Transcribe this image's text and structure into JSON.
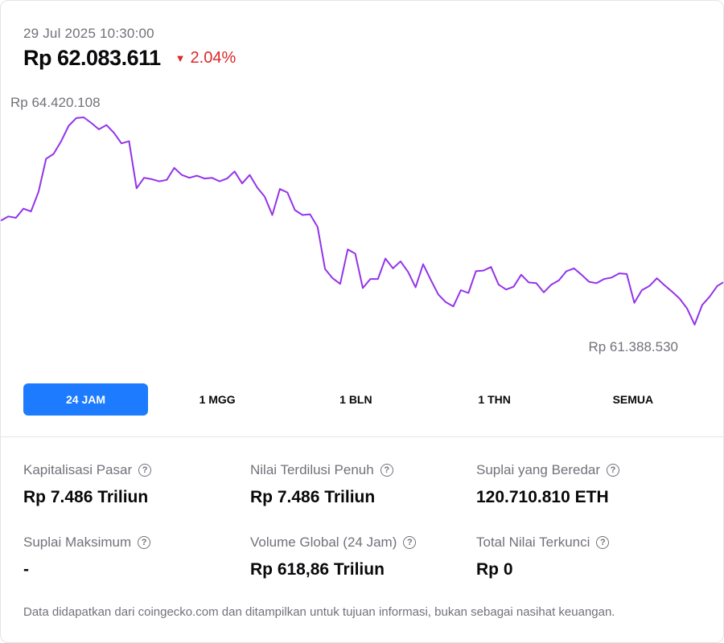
{
  "header": {
    "timestamp": "29 Jul 2025 10:30:00",
    "price": "Rp 62.083.611",
    "change": "2.04%",
    "change_direction": "down",
    "change_color": "#dc2626"
  },
  "chart_data": {
    "type": "line",
    "high_label": "Rp 64.420.108",
    "low_label": "Rp 61.388.530",
    "line_color": "#9333ea",
    "y": [
      62950000,
      63010000,
      62990000,
      63120000,
      63080000,
      63360000,
      63830000,
      63900000,
      64080000,
      64300000,
      64410000,
      64420108,
      64340000,
      64250000,
      64310000,
      64200000,
      64050000,
      64080000,
      63410000,
      63560000,
      63540000,
      63510000,
      63530000,
      63700000,
      63600000,
      63560000,
      63590000,
      63550000,
      63560000,
      63510000,
      63550000,
      63650000,
      63480000,
      63600000,
      63420000,
      63290000,
      63030000,
      63400000,
      63350000,
      63100000,
      63030000,
      63040000,
      62860000,
      62260000,
      62130000,
      62050000,
      62540000,
      62480000,
      61990000,
      62120000,
      62120000,
      62410000,
      62270000,
      62370000,
      62220000,
      62000000,
      62330000,
      62110000,
      61900000,
      61790000,
      61730000,
      61960000,
      61920000,
      62230000,
      62240000,
      62290000,
      62040000,
      61970000,
      62010000,
      62180000,
      62070000,
      62060000,
      61930000,
      62040000,
      62100000,
      62230000,
      62270000,
      62180000,
      62080000,
      62060000,
      62120000,
      62140000,
      62200000,
      62190000,
      61780000,
      61960000,
      62020000,
      62130000,
      62030000,
      61940000,
      61840000,
      61700000,
      61470000,
      61750000,
      61870000,
      62020000,
      62083611
    ],
    "ylim": [
      61388530,
      64420108
    ]
  },
  "ranges": {
    "items": [
      "24 JAM",
      "1 MGG",
      "1 BLN",
      "1 THN",
      "SEMUA"
    ],
    "active_index": 0,
    "active_color": "#1d7bff"
  },
  "stats": [
    {
      "label": "Kapitalisasi Pasar",
      "value": "Rp 7.486 Triliun"
    },
    {
      "label": "Nilai Terdilusi Penuh",
      "value": "Rp 7.486 Triliun"
    },
    {
      "label": "Suplai yang Beredar",
      "value": "120.710.810 ETH"
    },
    {
      "label": "Suplai Maksimum",
      "value": "-"
    },
    {
      "label": "Volume Global (24 Jam)",
      "value": "Rp 618,86 Triliun"
    },
    {
      "label": "Total Nilai Terkunci",
      "value": "Rp 0"
    }
  ],
  "help_icon_glyph": "?",
  "footnote": "Data didapatkan dari coingecko.com dan ditampilkan untuk tujuan informasi, bukan sebagai nasihat keuangan."
}
